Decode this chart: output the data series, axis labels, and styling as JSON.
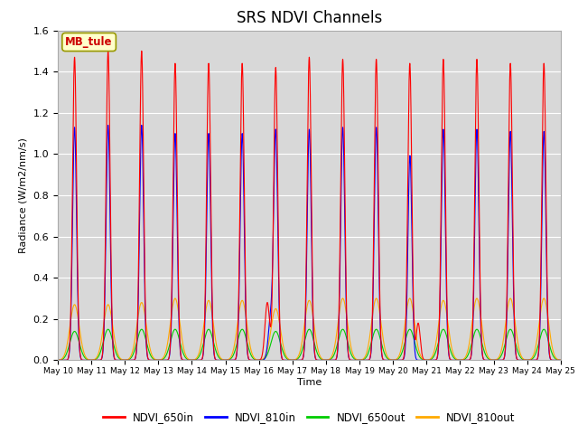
{
  "title": "SRS NDVI Channels",
  "xlabel": "Time",
  "ylabel": "Radiance (W/m2/nm/s)",
  "ylim": [
    0,
    1.6
  ],
  "background_color": "#d8d8d8",
  "annotation_text": "MB_tule",
  "annotation_bg": "#ffffcc",
  "annotation_border": "#999900",
  "series": {
    "NDVI_650in": {
      "color": "#ff0000",
      "label": "NDVI_650in"
    },
    "NDVI_810in": {
      "color": "#0000ff",
      "label": "NDVI_810in"
    },
    "NDVI_650out": {
      "color": "#00cc00",
      "label": "NDVI_650out"
    },
    "NDVI_810out": {
      "color": "#ffaa00",
      "label": "NDVI_810out"
    }
  },
  "n_cycles": 15,
  "tick_labels": [
    "May 10",
    "May 11",
    "May 12",
    "May 13",
    "May 14",
    "May 15",
    "May 16",
    "May 17",
    "May 18",
    "May 19",
    "May 20",
    "May 21",
    "May 22",
    "May 23",
    "May 24",
    "May 25"
  ],
  "peaks_650in": [
    1.47,
    1.5,
    1.5,
    1.44,
    1.44,
    1.44,
    1.42,
    1.47,
    1.46,
    1.46,
    1.44,
    1.46,
    1.46,
    1.44,
    1.44
  ],
  "peaks_810in": [
    1.13,
    1.14,
    1.14,
    1.1,
    1.1,
    1.1,
    1.1,
    1.12,
    1.13,
    1.13,
    1.1,
    1.12,
    1.12,
    1.11,
    1.11
  ],
  "peaks_650out": [
    0.14,
    0.15,
    0.15,
    0.15,
    0.15,
    0.15,
    0.14,
    0.15,
    0.15,
    0.15,
    0.15,
    0.15,
    0.15,
    0.15,
    0.15
  ],
  "peaks_810out": [
    0.27,
    0.27,
    0.28,
    0.3,
    0.29,
    0.29,
    0.25,
    0.29,
    0.3,
    0.3,
    0.3,
    0.29,
    0.3,
    0.3,
    0.3
  ],
  "sig_in": 0.06,
  "sig_out": 0.14,
  "pts_per_cycle": 500
}
